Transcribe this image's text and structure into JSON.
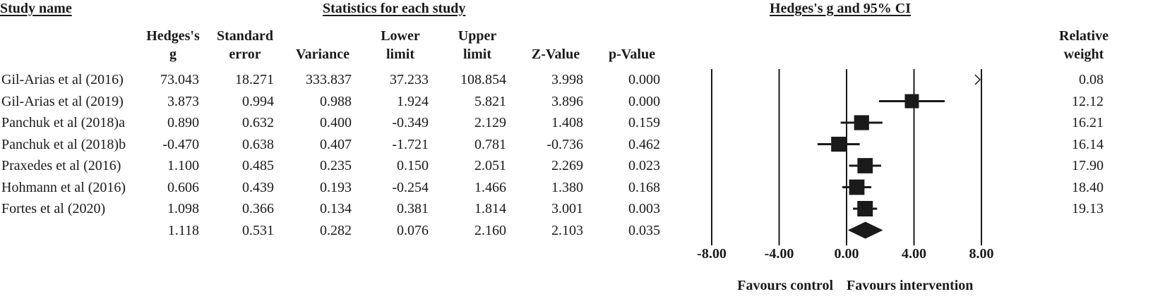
{
  "headers": {
    "study_name": "Study name",
    "statistics": "Statistics for each study",
    "plot_title": "Hedges's g and 95% CI"
  },
  "columns": {
    "hedges_g": "Hedges's\ng",
    "std_error": "Standard\nerror",
    "variance": "Variance",
    "lower": "Lower\nlimit",
    "upper": "Upper\nlimit",
    "z": "Z-Value",
    "p": "p-Value",
    "weight": "Relative\nweight"
  },
  "rows": [
    {
      "name": "Gil-Arias et al (2016)",
      "g": "73.043",
      "se": "18.271",
      "var": "333.837",
      "lo": "37.233",
      "hi": "108.854",
      "z": "3.998",
      "p": "0.000",
      "w": "0.08"
    },
    {
      "name": "Gil-Arias et al (2019)",
      "g": "3.873",
      "se": "0.994",
      "var": "0.988",
      "lo": "1.924",
      "hi": "5.821",
      "z": "3.896",
      "p": "0.000",
      "w": "12.12"
    },
    {
      "name": "Panchuk et al (2018)a",
      "g": "0.890",
      "se": "0.632",
      "var": "0.400",
      "lo": "-0.349",
      "hi": "2.129",
      "z": "1.408",
      "p": "0.159",
      "w": "16.21"
    },
    {
      "name": "Panchuk et al (2018)b",
      "g": "-0.470",
      "se": "0.638",
      "var": "0.407",
      "lo": "-1.721",
      "hi": "0.781",
      "z": "-0.736",
      "p": "0.462",
      "w": "16.14"
    },
    {
      "name": "Praxedes et al (2016)",
      "g": "1.100",
      "se": "0.485",
      "var": "0.235",
      "lo": "0.150",
      "hi": "2.051",
      "z": "2.269",
      "p": "0.023",
      "w": "17.90"
    },
    {
      "name": "Hohmann et al (2016)",
      "g": "0.606",
      "se": "0.439",
      "var": "0.193",
      "lo": "-0.254",
      "hi": "1.466",
      "z": "1.380",
      "p": "0.168",
      "w": "18.40"
    },
    {
      "name": "Fortes et al (2020)",
      "g": "1.098",
      "se": "0.366",
      "var": "0.134",
      "lo": "0.381",
      "hi": "1.814",
      "z": "3.001",
      "p": "0.003",
      "w": "19.13"
    }
  ],
  "summary": {
    "name": "",
    "g": "1.118",
    "se": "0.531",
    "var": "0.282",
    "lo": "0.076",
    "hi": "2.160",
    "z": "2.103",
    "p": "0.035",
    "w": ""
  },
  "chart_data": {
    "type": "forest",
    "title": "Hedges's g and 95% CI",
    "xlim": [
      -8,
      8
    ],
    "xticks": [
      -8,
      -4,
      0,
      4,
      8
    ],
    "xtick_labels": [
      "-8.00",
      "-4.00",
      "0.00",
      "4.00",
      "8.00"
    ],
    "reference_lines": [
      -8,
      -4,
      0,
      4,
      8
    ],
    "favours_left": "Favours control",
    "favours_right": "Favours intervention",
    "studies": [
      {
        "name": "Gil-Arias et al (2016)",
        "g": 73.043,
        "lower": 37.233,
        "upper": 108.854,
        "weight": 0.08
      },
      {
        "name": "Gil-Arias et al (2019)",
        "g": 3.873,
        "lower": 1.924,
        "upper": 5.821,
        "weight": 12.12
      },
      {
        "name": "Panchuk et al (2018)a",
        "g": 0.89,
        "lower": -0.349,
        "upper": 2.129,
        "weight": 16.21
      },
      {
        "name": "Panchuk et al (2018)b",
        "g": -0.47,
        "lower": -1.721,
        "upper": 0.781,
        "weight": 16.14
      },
      {
        "name": "Praxedes et al (2016)",
        "g": 1.1,
        "lower": 0.15,
        "upper": 2.051,
        "weight": 17.9
      },
      {
        "name": "Hohmann et al (2016)",
        "g": 0.606,
        "lower": -0.254,
        "upper": 1.466,
        "weight": 18.4
      },
      {
        "name": "Fortes et al (2020)",
        "g": 1.098,
        "lower": 0.381,
        "upper": 1.814,
        "weight": 19.13
      }
    ],
    "summary": {
      "g": 1.118,
      "lower": 0.076,
      "upper": 2.16
    },
    "marker_color": "#1a1a1a"
  }
}
